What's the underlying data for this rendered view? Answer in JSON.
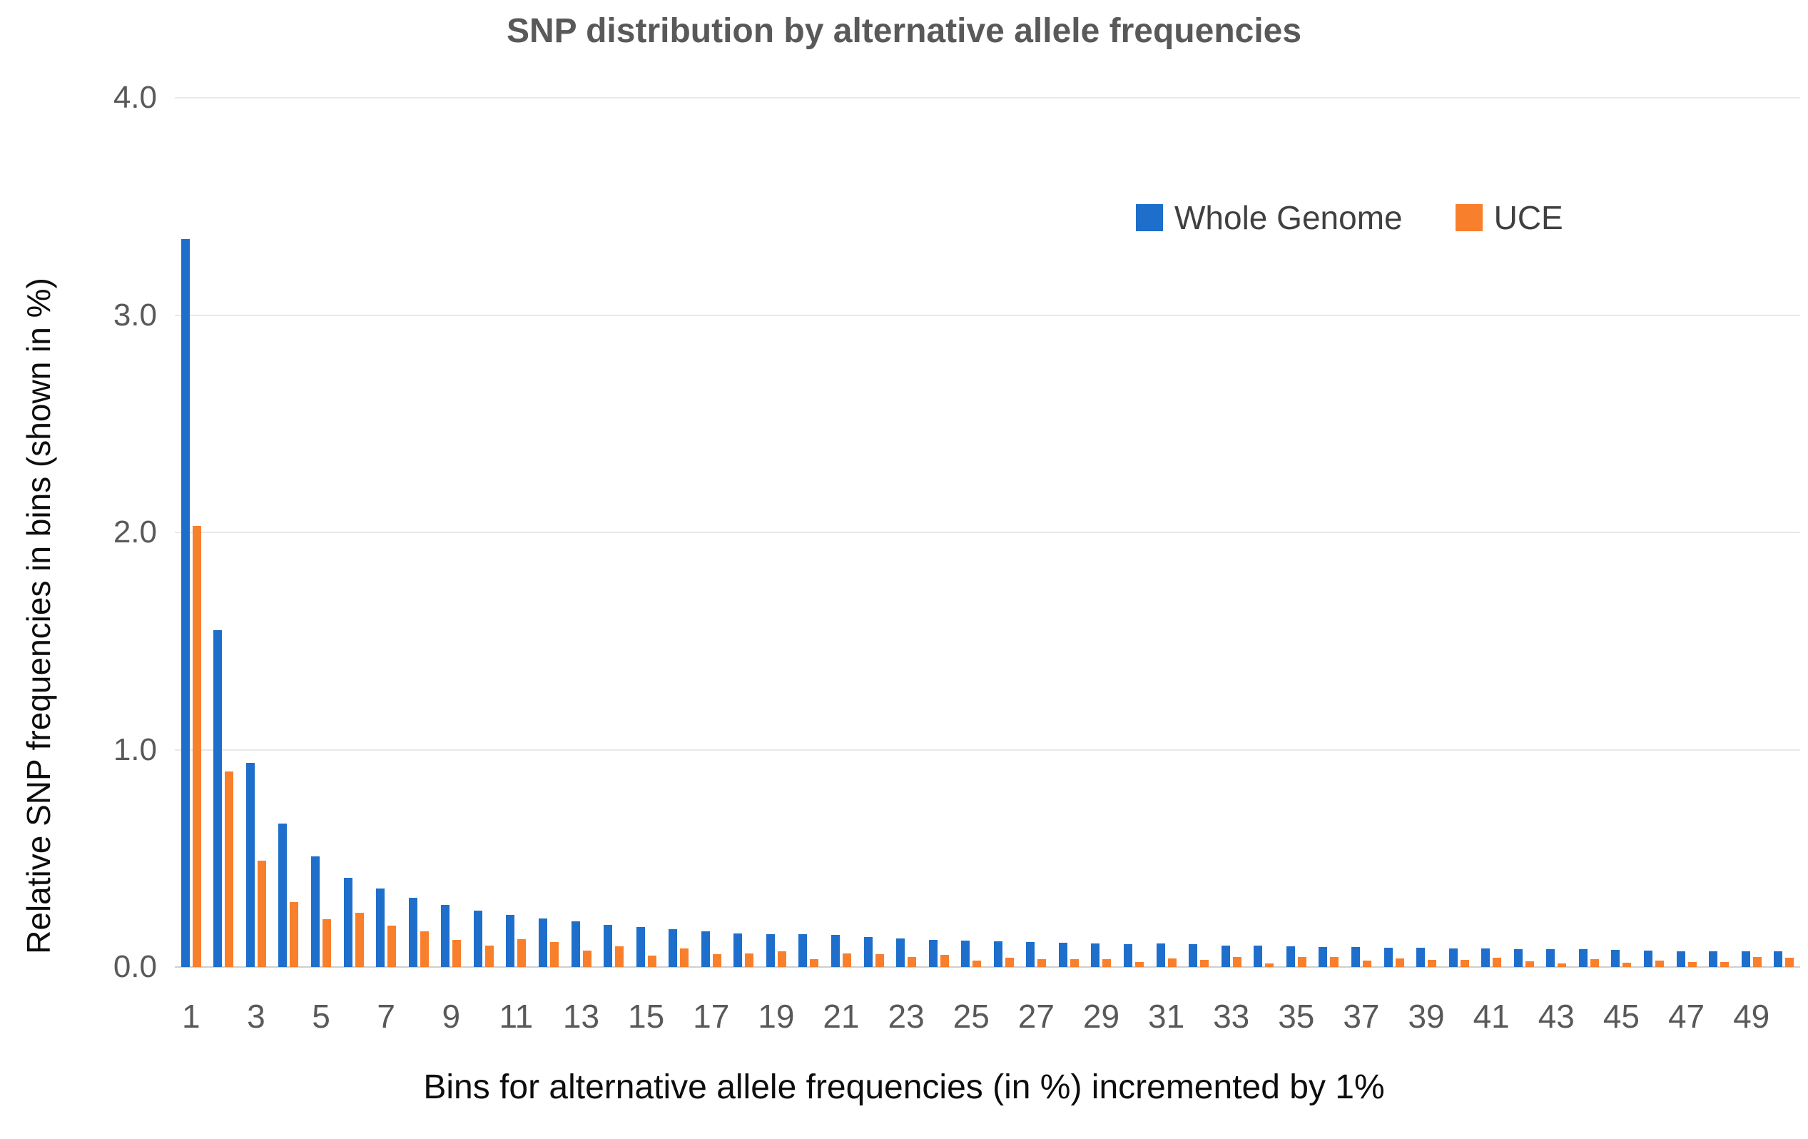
{
  "chart_data": {
    "type": "bar",
    "title": "SNP distribution by alternative allele frequencies",
    "xlabel": "Bins for alternative allele frequencies (in %) incremented by 1%",
    "ylabel": "Relative SNP frequencies in bins (shown in %)",
    "ylim": [
      0,
      4.0
    ],
    "ytick_values": [
      0,
      1,
      2,
      3,
      4
    ],
    "ytick_labels": [
      "0.0",
      "1.0",
      "2.0",
      "3.0",
      "4.0"
    ],
    "categories": [
      1,
      2,
      3,
      4,
      5,
      6,
      7,
      8,
      9,
      10,
      11,
      12,
      13,
      14,
      15,
      16,
      17,
      18,
      19,
      20,
      21,
      22,
      23,
      24,
      25,
      26,
      27,
      28,
      29,
      30,
      31,
      32,
      33,
      34,
      35,
      36,
      37,
      38,
      39,
      40,
      41,
      42,
      43,
      44,
      45,
      46,
      47,
      48,
      49,
      50
    ],
    "x_tick_labels": [
      "1",
      "3",
      "5",
      "7",
      "9",
      "11",
      "13",
      "15",
      "17",
      "19",
      "21",
      "23",
      "25",
      "27",
      "29",
      "31",
      "33",
      "35",
      "37",
      "39",
      "41",
      "43",
      "45",
      "47",
      "49"
    ],
    "grid": "horizontal",
    "legend_position": "top-right-inside",
    "series": [
      {
        "name": "Whole Genome",
        "color": "#1e6fcb",
        "values": [
          3.35,
          1.55,
          0.94,
          0.66,
          0.51,
          0.41,
          0.36,
          0.32,
          0.285,
          0.26,
          0.24,
          0.225,
          0.21,
          0.195,
          0.185,
          0.175,
          0.165,
          0.155,
          0.152,
          0.15,
          0.147,
          0.138,
          0.132,
          0.125,
          0.123,
          0.118,
          0.116,
          0.113,
          0.108,
          0.105,
          0.107,
          0.104,
          0.099,
          0.097,
          0.096,
          0.093,
          0.092,
          0.089,
          0.088,
          0.085,
          0.086,
          0.081,
          0.082,
          0.081,
          0.078,
          0.077,
          0.073,
          0.072,
          0.072,
          0.071
        ]
      },
      {
        "name": "UCE",
        "color": "#f87f2c",
        "values": [
          2.03,
          0.9,
          0.49,
          0.3,
          0.22,
          0.25,
          0.19,
          0.165,
          0.126,
          0.1,
          0.128,
          0.115,
          0.077,
          0.095,
          0.052,
          0.084,
          0.06,
          0.063,
          0.071,
          0.036,
          0.064,
          0.058,
          0.047,
          0.055,
          0.031,
          0.044,
          0.036,
          0.036,
          0.037,
          0.024,
          0.038,
          0.033,
          0.047,
          0.017,
          0.047,
          0.046,
          0.029,
          0.04,
          0.032,
          0.033,
          0.042,
          0.025,
          0.017,
          0.036,
          0.019,
          0.029,
          0.022,
          0.022,
          0.045,
          0.042
        ]
      }
    ]
  }
}
